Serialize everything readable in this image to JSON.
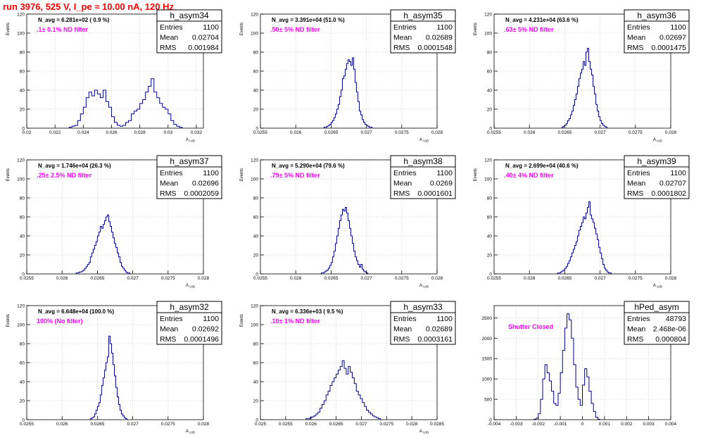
{
  "header": {
    "run_title": "run 3976,   525 V, I_pe ≈ 10.00 nA, 120 Hz"
  },
  "chart_data": [
    {
      "type": "histogram",
      "title": "h_asym34",
      "stats": {
        "entries_label": "Entries",
        "entries": "1100",
        "mean_label": "Mean",
        "mean": "0.02704",
        "rms_label": "RMS",
        "rms": "0.001984"
      },
      "n_avg": "N_avg = 6.281e+02 ( 0.9 %)",
      "filter": ".1± 0.1% ND filter",
      "xlabel": "A_UID",
      "ylabel": "Events",
      "xlim": [
        0.02,
        0.0325
      ],
      "ylim": [
        0,
        120
      ],
      "xticks": [
        0.02,
        0.022,
        0.024,
        0.026,
        0.028,
        0.03,
        0.032
      ],
      "xtick_labels": [
        "0.02",
        "0.022",
        "0.024",
        "0.026",
        "0.028",
        "0.03",
        "0.032"
      ],
      "yticks": [
        0,
        20,
        40,
        60,
        80,
        100,
        120
      ],
      "ytick_labels": [
        "0",
        "20",
        "40",
        "60",
        "80",
        "100",
        "120"
      ],
      "grid": true,
      "bins": {
        "start": 0.023,
        "width": 0.0002,
        "counts": [
          1,
          2,
          3,
          8,
          15,
          22,
          32,
          38,
          34,
          40,
          36,
          32,
          40,
          28,
          22,
          12,
          6,
          3,
          2,
          3,
          6,
          8,
          15,
          18,
          20,
          26,
          30,
          38,
          44,
          52,
          38,
          32,
          26,
          22,
          20,
          15,
          8,
          4,
          2,
          1
        ]
      }
    },
    {
      "type": "histogram",
      "title": "h_asym35",
      "stats": {
        "entries_label": "Entries",
        "entries": "1100",
        "mean_label": "Mean",
        "mean": "0.02689",
        "rms_label": "RMS",
        "rms": "0.0001548"
      },
      "n_avg": "N_avg = 3.391e+04 (51.0 %)",
      "filter": ".50± 5% ND filter",
      "xlabel": "A_UID",
      "ylabel": "Events",
      "xlim": [
        0.0255,
        0.028
      ],
      "ylim": [
        0,
        120
      ],
      "xticks": [
        0.0255,
        0.026,
        0.0265,
        0.027,
        0.0275,
        0.028
      ],
      "xtick_labels": [
        "0.0255",
        "0.026",
        "0.0265",
        "0.027",
        "0.0275",
        "0.028"
      ],
      "yticks": [
        0,
        20,
        40,
        60,
        80,
        100,
        120
      ],
      "ytick_labels": [
        "0",
        "20",
        "40",
        "60",
        "80",
        "100",
        "120"
      ],
      "grid": true,
      "bins": {
        "start": 0.0264,
        "width": 2e-05,
        "counts": [
          1,
          1,
          2,
          3,
          4,
          6,
          8,
          11,
          15,
          20,
          25,
          33,
          40,
          52,
          55,
          62,
          68,
          72,
          70,
          66,
          74,
          62,
          48,
          38,
          28,
          18,
          14,
          9,
          6,
          4,
          3,
          2,
          1,
          1
        ]
      }
    },
    {
      "type": "histogram",
      "title": "h_asym36",
      "stats": {
        "entries_label": "Entries",
        "entries": "1100",
        "mean_label": "Mean",
        "mean": "0.02697",
        "rms_label": "RMS",
        "rms": "0.0001475"
      },
      "n_avg": "N_avg = 4.231e+04 (63.6 %)",
      "filter": ".63± 5% ND filter",
      "xlabel": "A_UID",
      "ylabel": "Events",
      "xlim": [
        0.0255,
        0.028
      ],
      "ylim": [
        0,
        120
      ],
      "xticks": [
        0.0255,
        0.026,
        0.0265,
        0.027,
        0.0275,
        0.028
      ],
      "xtick_labels": [
        "0.0255",
        "0.026",
        "0.0265",
        "0.027",
        "0.0275",
        "0.028"
      ],
      "yticks": [
        0,
        20,
        40,
        60,
        80,
        100,
        120
      ],
      "ytick_labels": [
        "0",
        "20",
        "40",
        "60",
        "80",
        "100",
        "120"
      ],
      "grid": true,
      "bins": {
        "start": 0.02646,
        "width": 2e-05,
        "counts": [
          1,
          2,
          3,
          5,
          8,
          10,
          14,
          18,
          24,
          30,
          36,
          44,
          52,
          58,
          62,
          70,
          66,
          80,
          84,
          70,
          62,
          56,
          44,
          36,
          25,
          18,
          12,
          8,
          5,
          3,
          2,
          1
        ]
      }
    },
    {
      "type": "histogram",
      "title": "h_asym37",
      "stats": {
        "entries_label": "Entries",
        "entries": "1100",
        "mean_label": "Mean",
        "mean": "0.02696",
        "rms_label": "RMS",
        "rms": "0.0002059"
      },
      "n_avg": "N_avg = 1.746e+04 (26.3 %)",
      "filter": ".25± 2.5% ND filter",
      "xlabel": "A_UID",
      "ylabel": "Events",
      "xlim": [
        0.0255,
        0.028
      ],
      "ylim": [
        0,
        120
      ],
      "xticks": [
        0.0255,
        0.026,
        0.0265,
        0.027,
        0.0275,
        0.028
      ],
      "xtick_labels": [
        "0.0255",
        "0.026",
        "0.0265",
        "0.027",
        "0.0275",
        "0.028"
      ],
      "yticks": [
        0,
        20,
        40,
        60,
        80,
        100,
        120
      ],
      "ytick_labels": [
        "0",
        "20",
        "40",
        "60",
        "80",
        "100",
        "120"
      ],
      "grid": true,
      "bins": {
        "start": 0.0262,
        "width": 2e-05,
        "counts": [
          1,
          1,
          2,
          2,
          3,
          4,
          6,
          8,
          10,
          12,
          18,
          22,
          26,
          30,
          34,
          40,
          44,
          50,
          48,
          52,
          56,
          60,
          62,
          55,
          50,
          44,
          38,
          32,
          28,
          22,
          18,
          12,
          8,
          6,
          4,
          2,
          1,
          1
        ]
      }
    },
    {
      "type": "histogram",
      "title": "h_asym38",
      "stats": {
        "entries_label": "Entries",
        "entries": "1100",
        "mean_label": "Mean",
        "mean": "0.0269",
        "rms_label": "RMS",
        "rms": "0.0001601"
      },
      "n_avg": "N_avg = 5.290e+04 (79.6 %)",
      "filter": ".79± 5% ND filter",
      "xlabel": "A_UID",
      "ylabel": "Events",
      "xlim": [
        0.0255,
        0.028
      ],
      "ylim": [
        0,
        120
      ],
      "xticks": [
        0.0255,
        0.026,
        0.0265,
        0.027,
        0.0275,
        0.028
      ],
      "xtick_labels": [
        "0.0255",
        "0.026",
        "0.0265",
        "0.027",
        "0.0275",
        "0.028"
      ],
      "yticks": [
        0,
        20,
        40,
        60,
        80,
        100,
        120
      ],
      "ytick_labels": [
        "0",
        "20",
        "40",
        "60",
        "80",
        "100",
        "120"
      ],
      "grid": true,
      "bins": {
        "start": 0.02636,
        "width": 2e-05,
        "counts": [
          1,
          1,
          2,
          3,
          4,
          6,
          9,
          12,
          18,
          24,
          32,
          40,
          48,
          56,
          62,
          68,
          66,
          70,
          64,
          56,
          48,
          40,
          32,
          24,
          18,
          14,
          10,
          7,
          10,
          5,
          3,
          2,
          1
        ]
      }
    },
    {
      "type": "histogram",
      "title": "h_asym39",
      "stats": {
        "entries_label": "Entries",
        "entries": "1100",
        "mean_label": "Mean",
        "mean": "0.02707",
        "rms_label": "RMS",
        "rms": "0.0001802"
      },
      "n_avg": "N_avg = 2.699e+04 (40.6 %)",
      "filter": ".40± 4% ND filter",
      "xlabel": "A_UID",
      "ylabel": "Events",
      "xlim": [
        0.0255,
        0.028
      ],
      "ylim": [
        0,
        120
      ],
      "xticks": [
        0.0255,
        0.026,
        0.0265,
        0.027,
        0.0275,
        0.028
      ],
      "xtick_labels": [
        "0.0255",
        "0.026",
        "0.0265",
        "0.027",
        "0.0275",
        "0.028"
      ],
      "yticks": [
        0,
        20,
        40,
        60,
        80,
        100,
        120
      ],
      "ytick_labels": [
        "0",
        "20",
        "40",
        "60",
        "80",
        "100",
        "120"
      ],
      "grid": true,
      "bins": {
        "start": 0.0264,
        "width": 2e-05,
        "counts": [
          1,
          1,
          2,
          3,
          4,
          6,
          8,
          11,
          14,
          18,
          22,
          26,
          30,
          34,
          40,
          46,
          50,
          54,
          60,
          58,
          64,
          70,
          76,
          62,
          58,
          54,
          48,
          42,
          36,
          28,
          22,
          16,
          10,
          6,
          4,
          2,
          1,
          1
        ]
      }
    },
    {
      "type": "histogram",
      "title": "h_asym32",
      "stats": {
        "entries_label": "Entries",
        "entries": "1100",
        "mean_label": "Mean",
        "mean": "0.02692",
        "rms_label": "RMS",
        "rms": "0.0001496"
      },
      "n_avg": "N_avg = 6.648e+04 (100.0 %)",
      "filter": "100% (No filter)",
      "xlabel": "A_UID",
      "ylabel": "Events",
      "xlim": [
        0.0255,
        0.028
      ],
      "ylim": [
        0,
        120
      ],
      "xticks": [
        0.0255,
        0.026,
        0.0265,
        0.027,
        0.0275,
        0.028
      ],
      "xtick_labels": [
        "0.0255",
        "0.026",
        "0.0265",
        "0.027",
        "0.0275",
        "0.028"
      ],
      "yticks": [
        0,
        20,
        40,
        60,
        80,
        100,
        120
      ],
      "ytick_labels": [
        "0",
        "20",
        "40",
        "60",
        "80",
        "100",
        "120"
      ],
      "grid": true,
      "bins": {
        "start": 0.0264,
        "width": 2e-05,
        "counts": [
          1,
          2,
          3,
          6,
          10,
          14,
          18,
          26,
          36,
          44,
          52,
          60,
          66,
          88,
          80,
          70,
          58,
          46,
          34,
          24,
          16,
          10,
          6,
          4,
          2,
          1
        ]
      }
    },
    {
      "type": "histogram",
      "title": "h_asym33",
      "stats": {
        "entries_label": "Entries",
        "entries": "1100",
        "mean_label": "Mean",
        "mean": "0.02689",
        "rms_label": "RMS",
        "rms": "0.0003161"
      },
      "n_avg": "N_avg = 6.336e+03 ( 9.5 %)",
      "filter": ".10± 1% ND filter",
      "xlabel": "A_UID",
      "ylabel": "Events",
      "xlim": [
        0.025,
        0.0285
      ],
      "ylim": [
        0,
        120
      ],
      "xticks": [
        0.025,
        0.0255,
        0.026,
        0.0265,
        0.027,
        0.0275,
        0.028,
        0.0285
      ],
      "xtick_labels": [
        "0.025",
        "0.0255",
        "0.026",
        "0.0265",
        "0.027",
        "0.0275",
        "0.028",
        "0.0285"
      ],
      "yticks": [
        0,
        20,
        40,
        60,
        80,
        100,
        120
      ],
      "ytick_labels": [
        "0",
        "20",
        "40",
        "60",
        "80",
        "100",
        "120"
      ],
      "grid": true,
      "bins": {
        "start": 0.0259,
        "width": 4e-05,
        "counts": [
          1,
          1,
          2,
          3,
          4,
          6,
          8,
          12,
          16,
          20,
          26,
          30,
          36,
          40,
          44,
          48,
          52,
          56,
          62,
          54,
          48,
          56,
          50,
          44,
          38,
          30,
          26,
          22,
          18,
          14,
          10,
          8,
          6,
          4,
          3,
          2,
          1
        ]
      }
    },
    {
      "type": "histogram",
      "title": "hPed_asym",
      "stats": {
        "entries_label": "Entries",
        "entries": "48793",
        "mean_label": "Mean",
        "mean": "2.468e-06",
        "rms_label": "RMS",
        "rms": "0.000804"
      },
      "filter": "Shutter Closed",
      "xlabel": "",
      "ylabel": "",
      "xlim": [
        -0.004,
        0.004
      ],
      "ylim": [
        0,
        2800
      ],
      "xticks": [
        -0.004,
        -0.003,
        -0.002,
        -0.001,
        0,
        0.001,
        0.002,
        0.003,
        0.004
      ],
      "xtick_labels": [
        "-0.004",
        "-0.003",
        "-0.002",
        "-0.001",
        "0",
        "0.001",
        "0.002",
        "0.003",
        "0.004"
      ],
      "yticks": [
        0,
        500,
        1000,
        1500,
        2000,
        2500
      ],
      "ytick_labels": [
        "0",
        "500",
        "1000",
        "1500",
        "2000",
        "2500"
      ],
      "grid": true,
      "bins": {
        "start": -0.0022,
        "width": 0.0001,
        "counts": [
          10,
          40,
          150,
          500,
          1000,
          1350,
          1150,
          950,
          700,
          400,
          350,
          650,
          1150,
          1700,
          2250,
          2600,
          2450,
          2000,
          1350,
          800,
          500,
          350,
          850,
          1250,
          1050,
          700,
          400,
          200,
          60,
          10
        ]
      }
    }
  ]
}
